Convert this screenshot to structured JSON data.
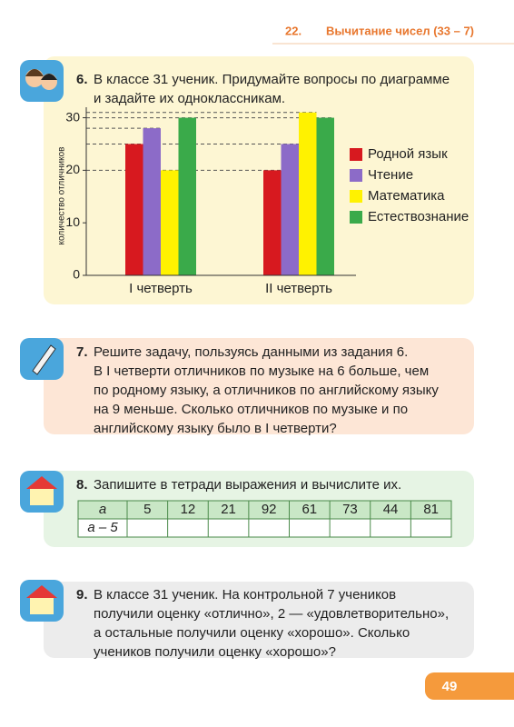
{
  "header": {
    "number": "22.",
    "title": "Вычитание чисел (33 – 7)"
  },
  "tasks": [
    {
      "number": "6.",
      "lines": [
        "В классе 31 ученик. Придумайте вопросы по диаграмме",
        "и задайте их одноклассникам."
      ]
    },
    {
      "number": "7.",
      "lines": [
        "Решите задачу, пользуясь данными из задания 6.",
        "В I четверти отличников по музыке на 6 больше, чем",
        "по родному языку, а отличников по английскому языку",
        "на 9 меньше. Сколько отличников по музыке и по",
        "английскому языку было в I четверти?"
      ]
    },
    {
      "number": "8.",
      "lines": [
        "Запишите в тетради выражения и вычислите их."
      ]
    },
    {
      "number": "9.",
      "lines": [
        "В классе 31 ученик. На контрольной 7 учеников",
        "получили оценку «отлично», 2 — «удовлетворительно»,",
        "а остальные получили оценку «хорошо». Сколько",
        "учеников получили оценку «хорошо»?"
      ]
    }
  ],
  "table": {
    "variable": "a",
    "values": [
      5,
      12,
      21,
      92,
      61,
      73,
      44,
      81
    ],
    "expression": "a – 5"
  },
  "chart_data": {
    "type": "bar",
    "ylabel": "количество отличников",
    "categories": [
      "I четверть",
      "II четверть"
    ],
    "series": [
      {
        "name": "Родной язык",
        "color": "#d7191f",
        "values": [
          25,
          20
        ]
      },
      {
        "name": "Чтение",
        "color": "#8c6bc8",
        "values": [
          28,
          25
        ]
      },
      {
        "name": "Математика",
        "color": "#fff200",
        "values": [
          20,
          31
        ]
      },
      {
        "name": "Естествознание",
        "color": "#3aaa4a",
        "values": [
          30,
          30
        ]
      }
    ],
    "ylim": [
      0,
      32
    ],
    "yticks": [
      0,
      10,
      20,
      30
    ],
    "legend": "right"
  },
  "page_number": 49
}
